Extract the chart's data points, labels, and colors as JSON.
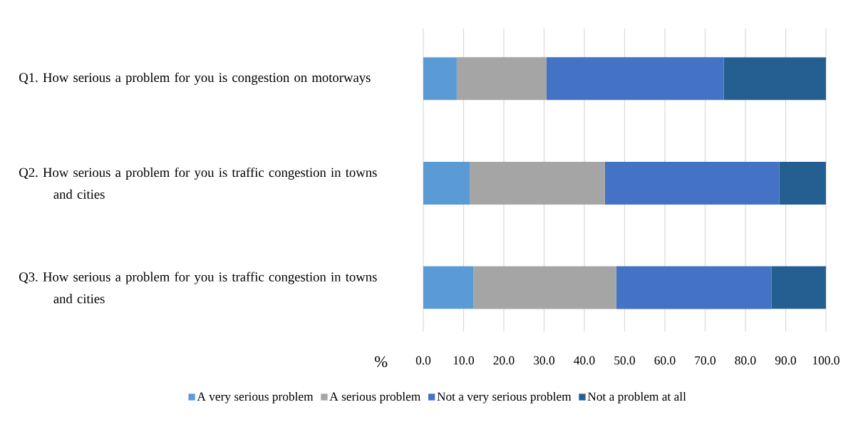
{
  "chart_data": {
    "type": "bar",
    "orientation": "horizontal",
    "stacked": true,
    "categories": [
      "Q1. How serious a problem for you is congestion on motorways",
      "Q2. How serious a problem for you is traffic congestion in towns and cities",
      "Q3. How serious a problem for you is traffic congestion in towns and cities"
    ],
    "series": [
      {
        "name": "A very serious problem",
        "color": "#5b9bd5",
        "values": [
          8.3,
          11.5,
          12.5
        ]
      },
      {
        "name": "A serious problem",
        "color": "#a5a5a5",
        "values": [
          22.3,
          33.6,
          35.4
        ]
      },
      {
        "name": "Not a very serious problem",
        "color": "#4472c4",
        "values": [
          44.0,
          43.3,
          38.6
        ]
      },
      {
        "name": "Not a problem at all",
        "color": "#255e91",
        "values": [
          25.4,
          11.6,
          13.5
        ]
      }
    ],
    "xlabel": "%",
    "xlim": [
      0,
      100
    ],
    "xticks": [
      {
        "value": 0,
        "label": "0.0"
      },
      {
        "value": 10,
        "label": "10.0"
      },
      {
        "value": 20,
        "label": "20.0"
      },
      {
        "value": 30,
        "label": "30.0"
      },
      {
        "value": 40,
        "label": "40.0"
      },
      {
        "value": 50,
        "label": "50.0"
      },
      {
        "value": 60,
        "label": "60.0"
      },
      {
        "value": 70,
        "label": "70.0"
      },
      {
        "value": 80,
        "label": "80.0"
      },
      {
        "value": 90,
        "label": "90.0"
      },
      {
        "value": 100,
        "label": "100.0"
      }
    ],
    "grid": "x",
    "legend": "bottom"
  }
}
